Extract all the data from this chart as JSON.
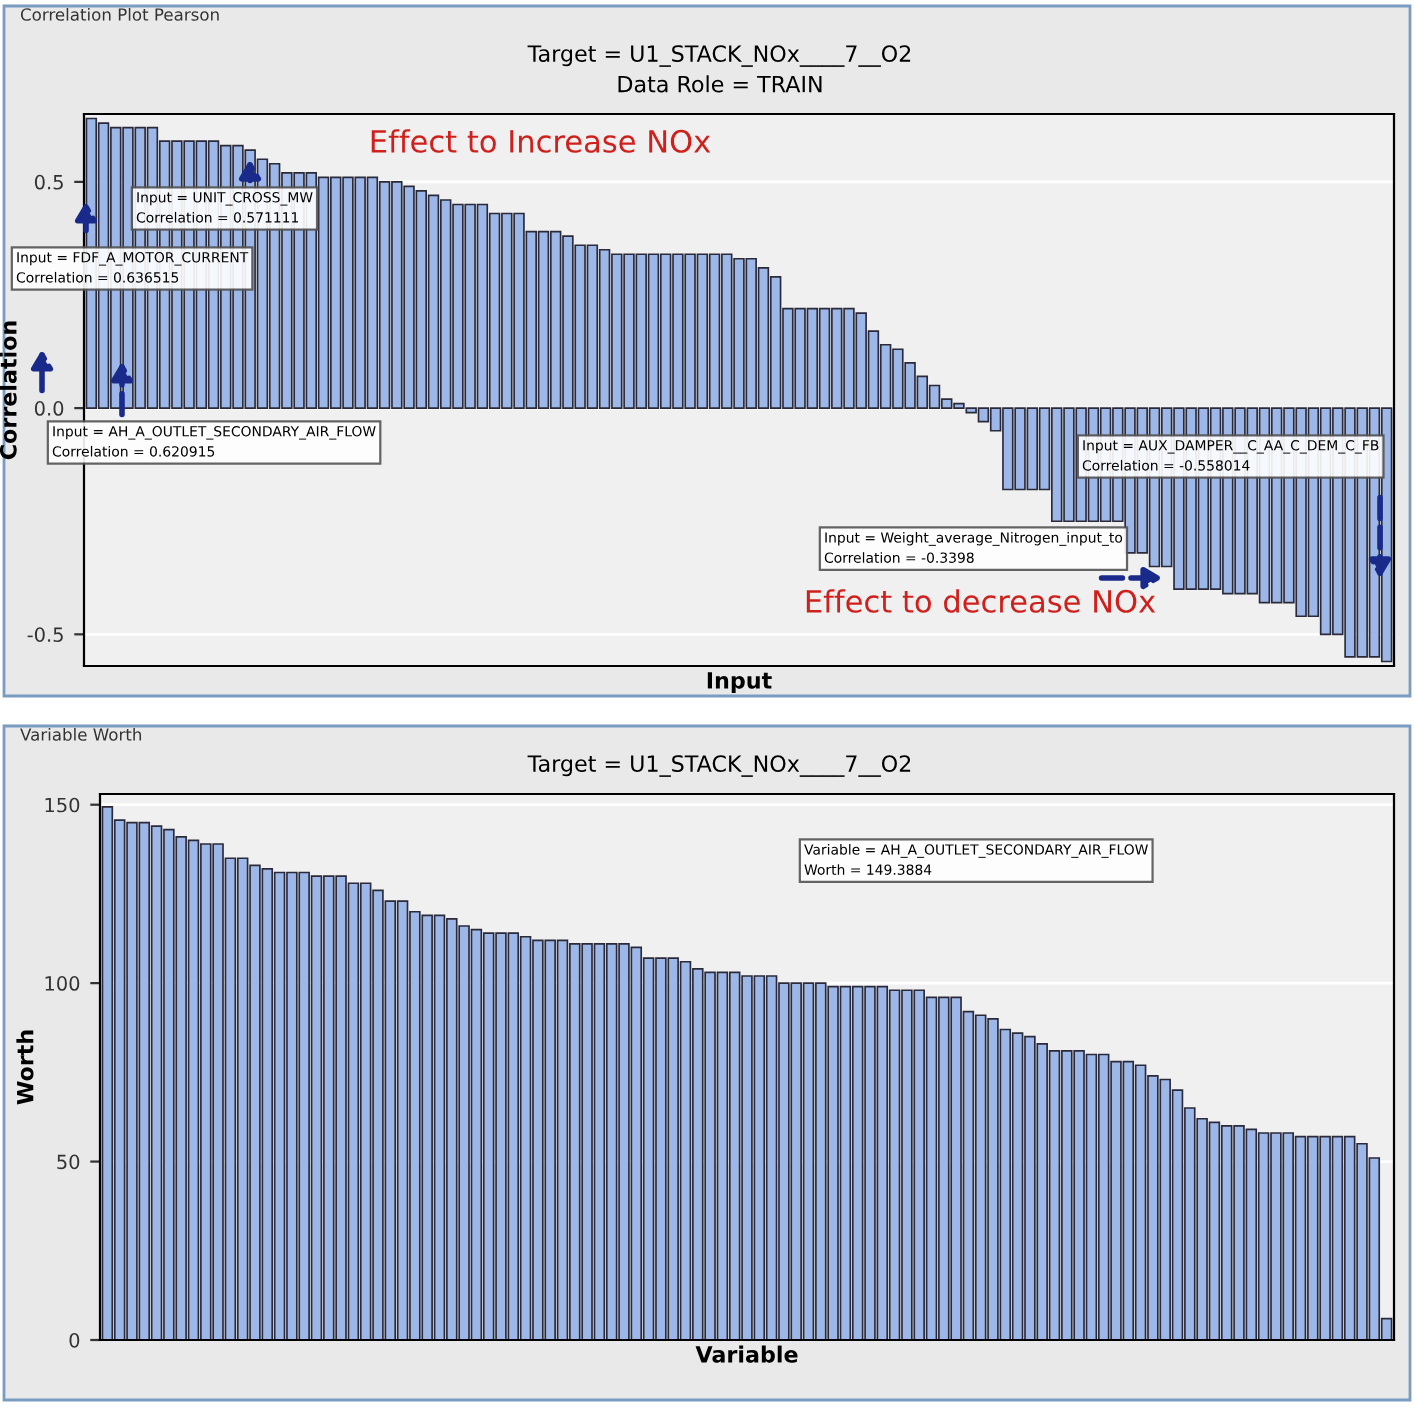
{
  "chart_data": [
    {
      "type": "bar",
      "title": "Correlation Plot Pearson",
      "subtitle": "Target = U1_STACK_NOx____7__O2",
      "xlabel": "Input",
      "ylabel": "Correlation",
      "annotations": [
        "Data Role = TRAIN",
        "Effect to Increase NOx",
        "Effect to decrease NOx",
        "Input = UNIT_CROSS_MW\nCorrelation = 0.571111",
        "Input = FDF_A_MOTOR_CURRENT\nCorrelation = 0.636515",
        "Input = AH_A_OUTLET_SECONDARY_AIR_FLOW\nCorrelation = 0.620915",
        "Input = AUX_DAMPER__C_AA_C_DEM_C_FB\nCorrelation = -0.558014",
        "Input = Weight_average_Nitrogen_input_to\nCorrelation = -0.3398"
      ],
      "categories": [
        null,
        null,
        null,
        null,
        null,
        null,
        null,
        null,
        null,
        null,
        null,
        null,
        null,
        null,
        null,
        null,
        null,
        null,
        null,
        null,
        null,
        null,
        null,
        null,
        null,
        null,
        null,
        null,
        null,
        null,
        null,
        null,
        null,
        null,
        null,
        null,
        null,
        null,
        null,
        null,
        null,
        null,
        null,
        null,
        null,
        null,
        null,
        null,
        null,
        null,
        null,
        null,
        null,
        null,
        null,
        null,
        null,
        null,
        null,
        null,
        null,
        null,
        null,
        null,
        null,
        null,
        null,
        null,
        null,
        null,
        null,
        null,
        null,
        null,
        null,
        null,
        null,
        null,
        null,
        null,
        null,
        null,
        null,
        null,
        null,
        null,
        null,
        null,
        null,
        null,
        null,
        null,
        null,
        null,
        null,
        null,
        null,
        null,
        null,
        null,
        null,
        null,
        null,
        null,
        null,
        null,
        null
      ],
      "values": [
        0.64,
        0.63,
        0.62,
        0.62,
        0.62,
        0.62,
        0.59,
        0.59,
        0.59,
        0.59,
        0.59,
        0.58,
        0.58,
        0.57,
        0.55,
        0.54,
        0.52,
        0.52,
        0.52,
        0.51,
        0.51,
        0.51,
        0.51,
        0.51,
        0.5,
        0.5,
        0.49,
        0.48,
        0.47,
        0.46,
        0.45,
        0.45,
        0.45,
        0.43,
        0.43,
        0.43,
        0.39,
        0.39,
        0.39,
        0.38,
        0.36,
        0.36,
        0.35,
        0.34,
        0.34,
        0.34,
        0.34,
        0.34,
        0.34,
        0.34,
        0.34,
        0.34,
        0.34,
        0.33,
        0.33,
        0.31,
        0.29,
        0.22,
        0.22,
        0.22,
        0.22,
        0.22,
        0.22,
        0.21,
        0.17,
        0.14,
        0.13,
        0.1,
        0.07,
        0.05,
        0.02,
        0.01,
        -0.01,
        -0.03,
        -0.05,
        -0.18,
        -0.18,
        -0.18,
        -0.18,
        -0.25,
        -0.25,
        -0.25,
        -0.25,
        -0.25,
        -0.25,
        -0.32,
        -0.32,
        -0.35,
        -0.35,
        -0.4,
        -0.4,
        -0.4,
        -0.4,
        -0.41,
        -0.41,
        -0.41,
        -0.43,
        -0.43,
        -0.43,
        -0.46,
        -0.46,
        -0.5,
        -0.5,
        -0.55,
        -0.55,
        -0.55,
        -0.56
      ],
      "color": "#9db8e8",
      "ylim": [
        -0.57,
        0.65
      ],
      "yticks": [
        {
          "value": 0.5,
          "label": "0.5"
        },
        {
          "value": 0.0,
          "label": "0.0"
        },
        {
          "value": -0.5,
          "label": "-0.5"
        }
      ],
      "grid": "y",
      "tick_labels": "y"
    },
    {
      "type": "bar",
      "title": "Variable Worth",
      "subtitle": "Target = U1_STACK_NOx____7__O2",
      "xlabel": "Variable",
      "ylabel": "Worth",
      "annotations": [
        "Variable = AH_A_OUTLET_SECONDARY_AIR_FLOW\nWorth = 149.3884"
      ],
      "categories": [
        null,
        null,
        null,
        null,
        null,
        null,
        null,
        null,
        null,
        null,
        null,
        null,
        null,
        null,
        null,
        null,
        null,
        null,
        null,
        null,
        null,
        null,
        null,
        null,
        null,
        null,
        null,
        null,
        null,
        null,
        null,
        null,
        null,
        null,
        null,
        null,
        null,
        null,
        null,
        null,
        null,
        null,
        null,
        null,
        null,
        null,
        null,
        null,
        null,
        null,
        null,
        null,
        null,
        null,
        null,
        null,
        null,
        null,
        null,
        null,
        null,
        null,
        null,
        null,
        null,
        null,
        null,
        null,
        null,
        null,
        null,
        null,
        null,
        null,
        null,
        null,
        null,
        null,
        null,
        null,
        null,
        null,
        null,
        null,
        null,
        null,
        null,
        null,
        null,
        null,
        null,
        null,
        null,
        null,
        null,
        null,
        null,
        null,
        null,
        null,
        null,
        null,
        null,
        null,
        null
      ],
      "values": [
        149.4,
        145.7,
        145,
        145,
        144,
        143,
        141,
        140,
        139,
        139,
        135,
        135,
        133,
        132,
        131,
        131,
        131,
        130,
        130,
        130,
        128,
        128,
        126,
        123,
        123,
        120,
        119,
        119,
        118,
        116,
        115,
        114,
        114,
        114,
        113,
        112,
        112,
        112,
        111,
        111,
        111,
        111,
        111,
        110,
        107,
        107,
        107,
        106,
        104,
        103,
        103,
        103,
        102,
        102,
        102,
        100,
        100,
        100,
        100,
        99,
        99,
        99,
        99,
        99,
        98,
        98,
        98,
        96,
        96,
        96,
        92,
        91,
        90,
        87,
        86,
        85,
        83,
        81,
        81,
        81,
        80,
        80,
        78,
        78,
        77,
        74,
        73,
        70,
        65,
        62,
        61,
        60,
        60,
        59,
        58,
        58,
        58,
        57,
        57,
        57,
        57,
        57,
        55,
        51,
        6
      ],
      "color": "#9db8e8",
      "ylim": [
        0,
        153
      ],
      "yticks": [
        0,
        50,
        100,
        150
      ],
      "grid": "y",
      "tick_labels": "y"
    }
  ]
}
